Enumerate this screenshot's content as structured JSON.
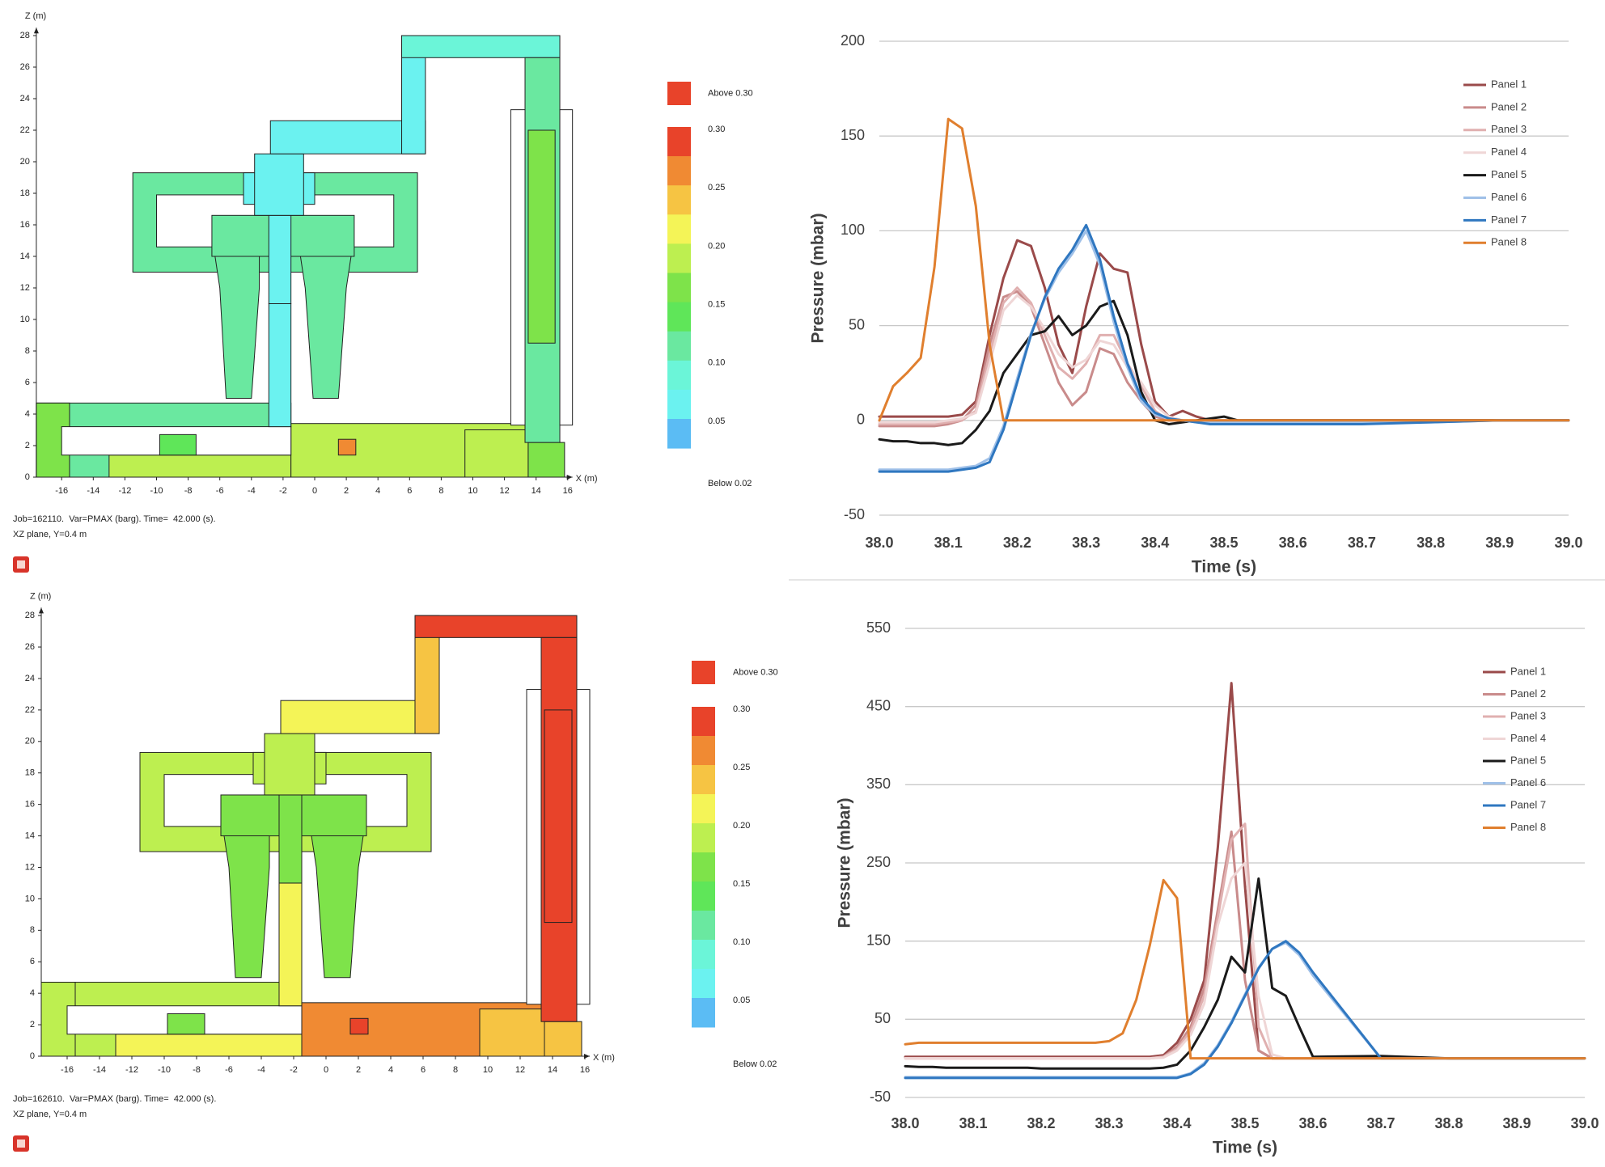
{
  "chart_data": [
    {
      "type": "contour",
      "x_label": "X (m)",
      "y_label": "Z (m)",
      "xlim": [
        -17.6,
        16.3
      ],
      "ylim": [
        0,
        28.5
      ],
      "xticks": [
        -16,
        -14,
        -12,
        -10,
        -8,
        -6,
        -4,
        -2,
        0,
        2,
        4,
        6,
        8,
        10,
        12,
        14,
        16
      ],
      "yticks": [
        0,
        2,
        4,
        6,
        8,
        10,
        12,
        14,
        16,
        18,
        20,
        22,
        24,
        26,
        28
      ],
      "colorbar": {
        "labels": [
          "Above 0.30",
          "0.30",
          "0.25",
          "0.20",
          "0.15",
          "0.10",
          "0.05",
          "Below 0.02"
        ],
        "colors": [
          "#e8432a",
          "#e8432a",
          "#f08a33",
          "#f6c443",
          "#f4f457",
          "#bdef50",
          "#7ee34a",
          "#5fe659",
          "#6ae8a0",
          "#6bf5d8",
          "#6bf2f0",
          "#5bbcf4"
        ]
      },
      "notes": [
        "Job=162110.  Var=PMAX (barg). Time=  42.000 (s).",
        "XZ plane, Y=0.4 m"
      ]
    },
    {
      "type": "line",
      "x_label": "Time (s)",
      "y_label": "Pressure (mbar)",
      "xlim": [
        38,
        39
      ],
      "ylim": [
        -50,
        200
      ],
      "xticks": [
        {
          "value": 38,
          "label": "38.0"
        },
        38.1,
        38.2,
        38.3,
        38.4,
        38.5,
        38.6,
        38.7,
        38.8,
        38.9,
        {
          "value": 39,
          "label": "39.0"
        }
      ],
      "yticks": [
        -50,
        0,
        50,
        100,
        150,
        200
      ],
      "grid": true,
      "x": [
        38,
        38.02,
        38.04,
        38.06,
        38.08,
        38.1,
        38.12,
        38.14,
        38.16,
        38.18,
        38.2,
        38.22,
        38.24,
        38.26,
        38.28,
        38.3,
        38.32,
        38.34,
        38.36,
        38.38,
        38.4,
        38.42,
        38.44,
        38.46,
        38.48,
        38.5,
        38.52,
        38.54,
        38.56,
        38.58,
        38.6,
        38.7,
        38.8,
        38.9,
        39
      ],
      "series": [
        {
          "name": "Panel 1",
          "color": "#9a4a4a",
          "values": [
            2,
            2,
            2,
            2,
            2,
            2,
            3,
            10,
            45,
            75,
            95,
            92,
            70,
            40,
            25,
            60,
            88,
            80,
            78,
            40,
            10,
            2,
            5,
            2,
            0,
            0,
            0,
            0,
            0,
            0,
            0,
            0,
            0,
            0,
            0
          ]
        },
        {
          "name": "Panel 2",
          "color": "#c98b8b",
          "values": [
            -3,
            -3,
            -3,
            -3,
            -3,
            -2,
            0,
            8,
            40,
            65,
            68,
            60,
            40,
            20,
            8,
            15,
            38,
            35,
            20,
            10,
            2,
            0,
            0,
            0,
            0,
            0,
            0,
            0,
            0,
            0,
            0,
            0,
            0,
            0,
            0
          ]
        },
        {
          "name": "Panel 3",
          "color": "#e0b0b0",
          "values": [
            -2,
            -2,
            -2,
            -2,
            -2,
            -1,
            0,
            5,
            35,
            62,
            70,
            62,
            45,
            28,
            22,
            30,
            45,
            45,
            30,
            18,
            5,
            0,
            0,
            0,
            0,
            0,
            0,
            0,
            0,
            0,
            0,
            0,
            0,
            0,
            0
          ]
        },
        {
          "name": "Panel 4",
          "color": "#efd6d6",
          "values": [
            -1,
            -1,
            -1,
            -1,
            -1,
            0,
            1,
            4,
            30,
            58,
            66,
            60,
            48,
            35,
            28,
            32,
            42,
            40,
            28,
            20,
            8,
            2,
            0,
            0,
            0,
            0,
            0,
            0,
            0,
            0,
            0,
            0,
            0,
            0,
            0
          ]
        },
        {
          "name": "Panel 5",
          "color": "#1a1a1a",
          "values": [
            -10,
            -11,
            -11,
            -12,
            -12,
            -13,
            -12,
            -5,
            5,
            25,
            35,
            45,
            47,
            55,
            45,
            50,
            60,
            63,
            45,
            15,
            0,
            -2,
            -1,
            0,
            1,
            2,
            0,
            0,
            0,
            0,
            0,
            0,
            0,
            0,
            0
          ]
        },
        {
          "name": "Panel 6",
          "color": "#9fc0e8",
          "values": [
            -26,
            -26,
            -26,
            -26,
            -26,
            -26,
            -25,
            -24,
            -20,
            -3,
            22,
            46,
            64,
            78,
            88,
            100,
            82,
            52,
            28,
            10,
            3,
            1,
            0,
            -1,
            -1,
            -1,
            -1,
            -1,
            -1,
            -1,
            -1,
            -1,
            -1,
            0,
            0
          ]
        },
        {
          "name": "Panel 7",
          "color": "#2f77c0",
          "values": [
            -27,
            -27,
            -27,
            -27,
            -27,
            -27,
            -26,
            -25,
            -22,
            -5,
            20,
            45,
            65,
            80,
            90,
            103,
            85,
            55,
            30,
            12,
            4,
            1,
            0,
            -1,
            -2,
            -2,
            -2,
            -2,
            -2,
            -2,
            -2,
            -2,
            -1,
            0,
            0
          ]
        },
        {
          "name": "Panel 8",
          "color": "#e07f2e",
          "values": [
            0,
            18,
            25,
            33,
            81,
            159,
            154,
            113,
            40,
            0,
            0,
            0,
            0,
            0,
            0,
            0,
            0,
            0,
            0,
            0,
            0,
            0,
            0,
            0,
            0,
            0,
            0,
            0,
            0,
            0,
            0,
            0,
            0,
            0,
            0
          ]
        }
      ]
    },
    {
      "type": "contour",
      "x_label": "X (m)",
      "y_label": "Z (m)",
      "xlim": [
        -17.6,
        16.3
      ],
      "ylim": [
        0,
        28.5
      ],
      "xticks": [
        -16,
        -14,
        -12,
        -10,
        -8,
        -6,
        -4,
        -2,
        0,
        2,
        4,
        6,
        8,
        10,
        12,
        14,
        16
      ],
      "yticks": [
        0,
        2,
        4,
        6,
        8,
        10,
        12,
        14,
        16,
        18,
        20,
        22,
        24,
        26,
        28
      ],
      "colorbar": {
        "labels": [
          "Above 0.30",
          "0.30",
          "0.25",
          "0.20",
          "0.15",
          "0.10",
          "0.05",
          "Below 0.02"
        ],
        "colors": [
          "#e8432a",
          "#e8432a",
          "#f08a33",
          "#f6c443",
          "#f4f457",
          "#bdef50",
          "#7ee34a",
          "#5fe659",
          "#6ae8a0",
          "#6bf5d8",
          "#6bf2f0",
          "#5bbcf4"
        ]
      },
      "notes": [
        "Job=162610.  Var=PMAX (barg). Time=  42.000 (s).",
        "XZ plane, Y=0.4 m"
      ]
    },
    {
      "type": "line",
      "x_label": "Time (s)",
      "y_label": "Pressure (mbar)",
      "xlim": [
        38,
        39
      ],
      "ylim": [
        -50,
        550
      ],
      "xticks": [
        {
          "value": 38,
          "label": "38.0"
        },
        38.1,
        38.2,
        38.3,
        38.4,
        38.5,
        38.6,
        38.7,
        38.8,
        38.9,
        {
          "value": 39,
          "label": "39.0"
        }
      ],
      "yticks": [
        -50,
        50,
        150,
        250,
        350,
        450,
        550
      ],
      "grid": true,
      "x": [
        38,
        38.02,
        38.04,
        38.06,
        38.08,
        38.1,
        38.12,
        38.14,
        38.16,
        38.18,
        38.2,
        38.22,
        38.24,
        38.26,
        38.28,
        38.3,
        38.32,
        38.34,
        38.36,
        38.38,
        38.4,
        38.42,
        38.44,
        38.46,
        38.48,
        38.5,
        38.52,
        38.54,
        38.56,
        38.58,
        38.6,
        38.7,
        38.8,
        38.9,
        39
      ],
      "series": [
        {
          "name": "Panel 1",
          "color": "#9a4a4a",
          "values": [
            2,
            2,
            2,
            2,
            2,
            2,
            2,
            2,
            2,
            2,
            2,
            2,
            2,
            2,
            2,
            2,
            2,
            2,
            2,
            4,
            20,
            50,
            100,
            270,
            480,
            220,
            10,
            0,
            0,
            0,
            0,
            0,
            0,
            0,
            0
          ]
        },
        {
          "name": "Panel 2",
          "color": "#c98b8b",
          "values": [
            0,
            0,
            0,
            0,
            0,
            0,
            0,
            0,
            0,
            0,
            0,
            0,
            0,
            0,
            0,
            0,
            0,
            0,
            0,
            2,
            15,
            40,
            90,
            190,
            290,
            100,
            10,
            0,
            0,
            0,
            0,
            0,
            0,
            0,
            0
          ]
        },
        {
          "name": "Panel 3",
          "color": "#e0b0b0",
          "values": [
            0,
            0,
            0,
            0,
            0,
            0,
            0,
            0,
            0,
            0,
            0,
            0,
            0,
            0,
            0,
            0,
            0,
            0,
            0,
            2,
            12,
            35,
            80,
            180,
            280,
            300,
            40,
            0,
            0,
            0,
            0,
            0,
            0,
            0,
            0
          ]
        },
        {
          "name": "Panel 4",
          "color": "#efd6d6",
          "values": [
            0,
            0,
            0,
            0,
            0,
            0,
            0,
            0,
            0,
            0,
            0,
            0,
            0,
            0,
            0,
            0,
            0,
            0,
            0,
            1,
            10,
            30,
            70,
            170,
            230,
            250,
            80,
            5,
            0,
            0,
            0,
            0,
            0,
            0,
            0
          ]
        },
        {
          "name": "Panel 5",
          "color": "#1a1a1a",
          "values": [
            -10,
            -11,
            -11,
            -12,
            -12,
            -12,
            -12,
            -12,
            -12,
            -12,
            -13,
            -13,
            -13,
            -13,
            -13,
            -13,
            -13,
            -13,
            -13,
            -12,
            -8,
            10,
            40,
            75,
            130,
            110,
            230,
            90,
            80,
            40,
            2,
            3,
            0,
            0,
            0
          ]
        },
        {
          "name": "Panel 6",
          "color": "#9fc0e8",
          "values": [
            -24,
            -24,
            -24,
            -24,
            -24,
            -24,
            -24,
            -24,
            -24,
            -24,
            -24,
            -24,
            -24,
            -24,
            -24,
            -24,
            -24,
            -24,
            -24,
            -24,
            -24,
            -19,
            -6,
            17,
            47,
            82,
            116,
            140,
            148,
            132,
            106,
            0,
            0,
            0,
            0
          ]
        },
        {
          "name": "Panel 7",
          "color": "#2f77c0",
          "values": [
            -25,
            -25,
            -25,
            -25,
            -25,
            -25,
            -25,
            -25,
            -25,
            -25,
            -25,
            -25,
            -25,
            -25,
            -25,
            -25,
            -25,
            -25,
            -25,
            -25,
            -25,
            -20,
            -8,
            15,
            45,
            80,
            115,
            140,
            150,
            135,
            110,
            0,
            0,
            0,
            0
          ]
        },
        {
          "name": "Panel 8",
          "color": "#e07f2e",
          "values": [
            18,
            20,
            20,
            20,
            20,
            20,
            20,
            20,
            20,
            20,
            20,
            20,
            20,
            20,
            20,
            22,
            32,
            75,
            145,
            228,
            205,
            0,
            0,
            0,
            0,
            0,
            0,
            0,
            0,
            0,
            0,
            0,
            0,
            0,
            0
          ]
        }
      ]
    }
  ]
}
